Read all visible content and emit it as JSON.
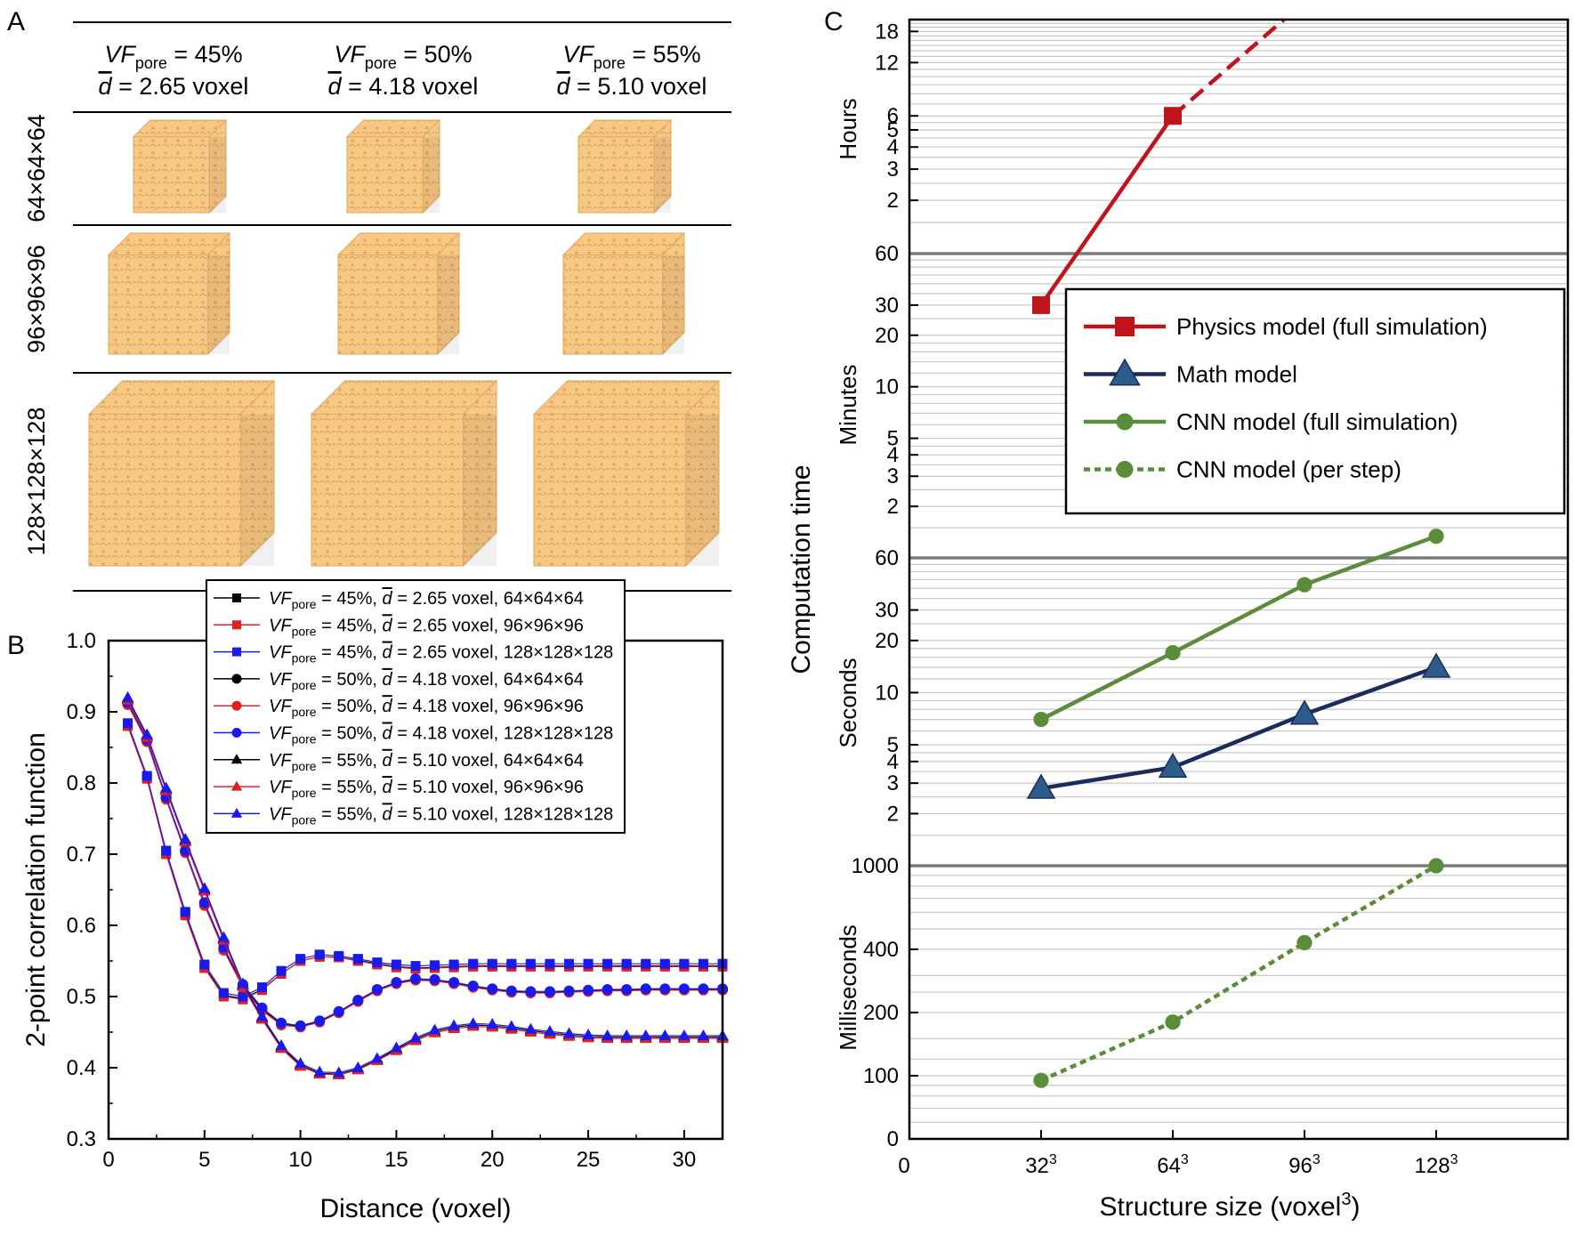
{
  "figure": {
    "panel_a": {
      "letter": "A",
      "columns": [
        {
          "vf_label": "VF",
          "vf_sub": "pore",
          "vf_value": " = 45%",
          "d_label": "d",
          "d_value": " = 2.65 voxel"
        },
        {
          "vf_label": "VF",
          "vf_sub": "pore",
          "vf_value": " = 50%",
          "d_label": "d",
          "d_value": " = 4.18 voxel"
        },
        {
          "vf_label": "VF",
          "vf_sub": "pore",
          "vf_value": " = 55%",
          "d_label": "d",
          "d_value": " = 5.10 voxel"
        }
      ],
      "rows": [
        "64×64×64",
        "96×96×96",
        "128×128×128"
      ],
      "cube_color": "#f7c784",
      "cube_dark": "#e9b06a"
    },
    "panel_b": {
      "letter": "B"
    },
    "panel_c": {
      "letter": "C"
    }
  },
  "chart_data": [
    {
      "type": "line",
      "panel": "B",
      "xlabel": "Distance (voxel)",
      "ylabel": "2-point correlation function",
      "xlim": [
        0,
        32
      ],
      "ylim": [
        0.3,
        1.0
      ],
      "xticks": [
        0,
        5,
        10,
        15,
        20,
        25,
        30
      ],
      "yticks": [
        0.3,
        0.4,
        0.5,
        0.6,
        0.7,
        0.8,
        0.9,
        1.0
      ],
      "x": [
        1,
        2,
        3,
        4,
        5,
        6,
        7,
        8,
        9,
        10,
        11,
        12,
        13,
        14,
        15,
        16,
        17,
        18,
        19,
        20,
        21,
        22,
        23,
        24,
        25,
        26,
        27,
        28,
        29,
        30,
        31,
        32
      ],
      "legend_placement": "top-right",
      "series": [
        {
          "label_prefix": "VF",
          "label_sub": "pore",
          "label_rest": " = 45%, ",
          "label_d": "d",
          "label_tail": " = 2.65 voxel, 64×64×64",
          "color": "#000000",
          "marker": "square",
          "values": [
            0.882,
            0.808,
            0.702,
            0.617,
            0.542,
            0.502,
            0.497,
            0.51,
            0.532,
            0.55,
            0.556,
            0.555,
            0.551,
            0.546,
            0.542,
            0.54,
            0.541,
            0.542,
            0.543,
            0.543,
            0.543,
            0.543,
            0.543,
            0.543,
            0.543,
            0.543,
            0.543,
            0.543,
            0.543,
            0.543,
            0.543,
            0.543
          ]
        },
        {
          "label_prefix": "VF",
          "label_sub": "pore",
          "label_rest": " = 45%, ",
          "label_d": "d",
          "label_tail": " = 2.65 voxel, 96×96×96",
          "color": "#e02020",
          "marker": "square",
          "values": [
            0.88,
            0.806,
            0.7,
            0.614,
            0.54,
            0.5,
            0.496,
            0.509,
            0.532,
            0.55,
            0.556,
            0.555,
            0.55,
            0.545,
            0.541,
            0.539,
            0.54,
            0.541,
            0.542,
            0.542,
            0.542,
            0.542,
            0.542,
            0.542,
            0.542,
            0.542,
            0.542,
            0.542,
            0.542,
            0.542,
            0.542,
            0.542
          ]
        },
        {
          "label_prefix": "VF",
          "label_sub": "pore",
          "label_rest": " = 45%, ",
          "label_d": "d",
          "label_tail": " = 2.65 voxel, 128×128×128",
          "color": "#1a1aee",
          "marker": "square",
          "values": [
            0.884,
            0.81,
            0.705,
            0.619,
            0.545,
            0.505,
            0.5,
            0.513,
            0.536,
            0.553,
            0.559,
            0.557,
            0.553,
            0.548,
            0.545,
            0.543,
            0.544,
            0.545,
            0.546,
            0.546,
            0.546,
            0.546,
            0.546,
            0.546,
            0.546,
            0.546,
            0.546,
            0.546,
            0.546,
            0.546,
            0.546,
            0.546
          ]
        },
        {
          "label_prefix": "VF",
          "label_sub": "pore",
          "label_rest": " = 50%, ",
          "label_d": "d",
          "label_tail": " = 4.18 voxel, 64×64×64",
          "color": "#000000",
          "marker": "circle",
          "values": [
            0.912,
            0.86,
            0.779,
            0.704,
            0.63,
            0.567,
            0.515,
            0.482,
            0.462,
            0.458,
            0.465,
            0.478,
            0.494,
            0.509,
            0.519,
            0.524,
            0.523,
            0.519,
            0.514,
            0.51,
            0.507,
            0.506,
            0.506,
            0.507,
            0.508,
            0.509,
            0.509,
            0.51,
            0.51,
            0.51,
            0.51,
            0.51
          ]
        },
        {
          "label_prefix": "VF",
          "label_sub": "pore",
          "label_rest": " = 50%, ",
          "label_d": "d",
          "label_tail": " = 4.18 voxel, 96×96×96",
          "color": "#e02020",
          "marker": "circle",
          "values": [
            0.91,
            0.858,
            0.777,
            0.702,
            0.628,
            0.565,
            0.513,
            0.48,
            0.46,
            0.457,
            0.464,
            0.477,
            0.493,
            0.508,
            0.518,
            0.523,
            0.522,
            0.518,
            0.513,
            0.509,
            0.506,
            0.505,
            0.505,
            0.506,
            0.507,
            0.508,
            0.508,
            0.509,
            0.509,
            0.509,
            0.509,
            0.509
          ]
        },
        {
          "label_prefix": "VF",
          "label_sub": "pore",
          "label_rest": " = 50%, ",
          "label_d": "d",
          "label_tail": " = 4.18 voxel, 128×128×128",
          "color": "#1a1aee",
          "marker": "circle",
          "values": [
            0.913,
            0.861,
            0.78,
            0.705,
            0.632,
            0.569,
            0.517,
            0.484,
            0.463,
            0.459,
            0.466,
            0.479,
            0.495,
            0.51,
            0.52,
            0.525,
            0.524,
            0.52,
            0.515,
            0.511,
            0.508,
            0.507,
            0.507,
            0.508,
            0.509,
            0.51,
            0.51,
            0.511,
            0.511,
            0.511,
            0.511,
            0.511
          ]
        },
        {
          "label_prefix": "VF",
          "label_sub": "pore",
          "label_rest": " = 55%, ",
          "label_d": "d",
          "label_tail": " = 5.10 voxel, 64×64×64",
          "color": "#000000",
          "marker": "triangle",
          "values": [
            0.918,
            0.866,
            0.791,
            0.719,
            0.65,
            0.581,
            0.516,
            0.47,
            0.429,
            0.404,
            0.392,
            0.391,
            0.398,
            0.411,
            0.426,
            0.44,
            0.451,
            0.457,
            0.46,
            0.459,
            0.456,
            0.452,
            0.449,
            0.446,
            0.444,
            0.443,
            0.443,
            0.443,
            0.443,
            0.443,
            0.443,
            0.443
          ]
        },
        {
          "label_prefix": "VF",
          "label_sub": "pore",
          "label_rest": " = 55%, ",
          "label_d": "d",
          "label_tail": " = 5.10 voxel, 96×96×96",
          "color": "#e02020",
          "marker": "triangle",
          "values": [
            0.916,
            0.864,
            0.789,
            0.717,
            0.648,
            0.579,
            0.514,
            0.468,
            0.427,
            0.402,
            0.391,
            0.39,
            0.397,
            0.41,
            0.424,
            0.438,
            0.449,
            0.455,
            0.458,
            0.457,
            0.454,
            0.45,
            0.447,
            0.444,
            0.442,
            0.441,
            0.441,
            0.441,
            0.441,
            0.441,
            0.441,
            0.441
          ]
        },
        {
          "label_prefix": "VF",
          "label_sub": "pore",
          "label_rest": " = 55%, ",
          "label_d": "d",
          "label_tail": " = 5.10 voxel, 128×128×128",
          "color": "#1a1aee",
          "marker": "triangle",
          "values": [
            0.92,
            0.868,
            0.793,
            0.721,
            0.652,
            0.583,
            0.518,
            0.472,
            0.431,
            0.406,
            0.394,
            0.393,
            0.4,
            0.413,
            0.428,
            0.442,
            0.453,
            0.459,
            0.462,
            0.461,
            0.458,
            0.454,
            0.451,
            0.448,
            0.446,
            0.445,
            0.445,
            0.445,
            0.445,
            0.445,
            0.445,
            0.445
          ]
        }
      ]
    },
    {
      "type": "line",
      "panel": "C",
      "xlabel_main": "Structure size (voxel",
      "xlabel_sup": "3",
      "xlabel_end": ")",
      "ylabel": "Computation time",
      "xlim": [
        0,
        160
      ],
      "x_zero_label": "0",
      "y_zero_label": "0",
      "xticks": [
        {
          "value": 32,
          "base": "32",
          "sup": "3"
        },
        {
          "value": 64,
          "base": "64",
          "sup": "3"
        },
        {
          "value": 96,
          "base": "96",
          "sup": "3"
        },
        {
          "value": 128,
          "base": "128",
          "sup": "3"
        }
      ],
      "units": [
        "Hours",
        "Minutes",
        "Seconds",
        "Milliseconds"
      ],
      "segments": [
        {
          "unit": "Hours",
          "range": [
            1,
            21
          ],
          "ticks": [
            2,
            3,
            4,
            5,
            6,
            12,
            18
          ],
          "boundary_label": "60"
        },
        {
          "unit": "Minutes",
          "range": [
            1,
            60
          ],
          "ticks": [
            2,
            3,
            4,
            5,
            10,
            20,
            30
          ],
          "boundary_label": "60"
        },
        {
          "unit": "Seconds",
          "range": [
            1,
            60
          ],
          "ticks": [
            2,
            3,
            4,
            5,
            10,
            20,
            30
          ],
          "boundary_label": "1000"
        },
        {
          "unit": "Milliseconds",
          "range": [
            50,
            1000
          ],
          "ticks": [
            100,
            200,
            400
          ]
        }
      ],
      "series": [
        {
          "name": "Physics model (full simulation)",
          "color": "#c0141c",
          "marker": "square",
          "dash": false,
          "points": [
            {
              "x": 32,
              "value": 30,
              "unit": "Minutes"
            },
            {
              "x": 64,
              "value": 6,
              "unit": "Hours"
            }
          ]
        },
        {
          "name": "Physics model extrapolation",
          "color": "#c0141c",
          "marker": "none",
          "dash": true,
          "in_legend": false,
          "points": [
            {
              "x": 64,
              "value": 6,
              "unit": "Hours"
            },
            {
              "x": 91,
              "value": 21,
              "unit": "Hours"
            }
          ]
        },
        {
          "name": "Math model",
          "color": "#1c2b5e",
          "marker": "triangle",
          "marker_fill": "#2d5b8a",
          "dash": false,
          "points": [
            {
              "x": 32,
              "value": 2.8,
              "unit": "Seconds"
            },
            {
              "x": 64,
              "value": 3.7,
              "unit": "Seconds"
            },
            {
              "x": 96,
              "value": 7.5,
              "unit": "Seconds"
            },
            {
              "x": 128,
              "value": 14,
              "unit": "Seconds"
            }
          ]
        },
        {
          "name": "CNN model (full simulation)",
          "color": "#5b8c3a",
          "marker": "circle",
          "dash": false,
          "points": [
            {
              "x": 32,
              "value": 7,
              "unit": "Seconds"
            },
            {
              "x": 64,
              "value": 17,
              "unit": "Seconds"
            },
            {
              "x": 96,
              "value": 42,
              "unit": "Seconds"
            },
            {
              "x": 128,
              "value": 80,
              "unit": "Seconds"
            }
          ]
        },
        {
          "name": "CNN model (per step)",
          "color": "#5b8c3a",
          "marker": "circle",
          "dash": true,
          "points": [
            {
              "x": 32,
              "value": 95,
              "unit": "Milliseconds"
            },
            {
              "x": 64,
              "value": 180,
              "unit": "Milliseconds"
            },
            {
              "x": 96,
              "value": 430,
              "unit": "Milliseconds"
            },
            {
              "x": 128,
              "value": 1000,
              "unit": "Milliseconds"
            }
          ]
        }
      ],
      "legend": [
        "Physics model (full simulation)",
        "Math model",
        "CNN model (full simulation)",
        "CNN model (per step)"
      ],
      "legend_placement": "upper-right"
    }
  ]
}
